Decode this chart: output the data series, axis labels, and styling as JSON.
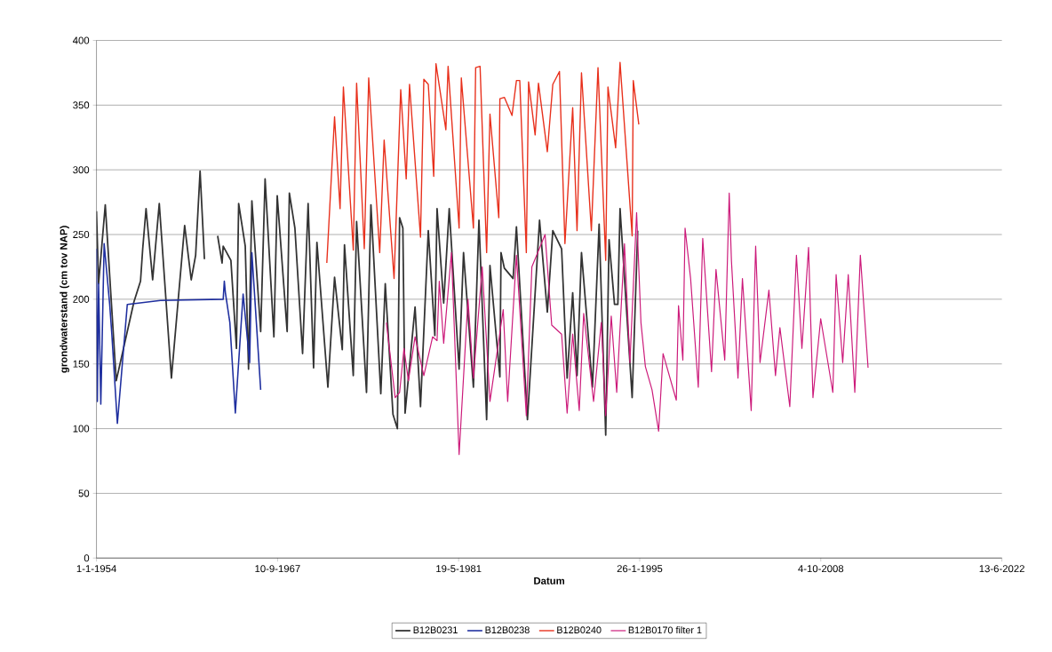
{
  "chart_data": {
    "type": "line",
    "xlabel": "Datum",
    "ylabel": "grondwaterstand (cm tov NAP)",
    "xlim": [
      "1954-01-01",
      "2022-06-13"
    ],
    "ylim": [
      0,
      400
    ],
    "xticks": [
      {
        "value": "1954-01-01",
        "label": "1-1-1954"
      },
      {
        "value": "1967-09-10",
        "label": "10-9-1967"
      },
      {
        "value": "1981-05-19",
        "label": "19-5-1981"
      },
      {
        "value": "1995-01-26",
        "label": "26-1-1995"
      },
      {
        "value": "2008-10-04",
        "label": "4-10-2008"
      },
      {
        "value": "2022-06-13",
        "label": "13-6-2022"
      }
    ],
    "yticks": [
      0,
      50,
      100,
      150,
      200,
      250,
      300,
      350,
      400
    ],
    "grid": "y",
    "legend": "bottom",
    "marker": "none",
    "line_style": "solid",
    "series": [
      {
        "name": "B12B0231",
        "color": "#333333",
        "x": [
          "1954-01-01",
          "1954-03",
          "1954-09",
          "1955-07",
          "1956-11",
          "1957-05",
          "1957-07",
          "1957-10",
          "1958-04",
          "1958-10",
          "1959-09",
          "1960-09",
          "1961-03",
          "1961-07",
          "1961-11",
          "1962-03",
          "1962-09",
          "1963-03",
          "1963-07",
          "1963-08",
          "1964-03",
          "1964-08",
          "1964-10",
          "1965-04",
          "1965-07",
          "1965-10",
          "1966-06",
          "1966-10",
          "1967-06",
          "1967-09",
          "1968-06",
          "1968-08",
          "1969-01",
          "1969-08",
          "1970-01",
          "1970-06",
          "1970-09",
          "1971-07",
          "1972-01",
          "1972-08",
          "1972-10",
          "1973-06",
          "1973-09",
          "1974-06",
          "1974-10",
          "1975-07",
          "1975-11",
          "1976-06",
          "1976-10",
          "1976-12",
          "1977-03",
          "1977-05",
          "1978-02",
          "1978-07",
          "1979-02",
          "1979-08",
          "1979-10",
          "1980-04",
          "1980-09",
          "1981-06",
          "1981-10",
          "1982-07",
          "1982-12",
          "1983-07",
          "1983-10",
          "1984-07",
          "1984-08",
          "1984-11",
          "1985-07",
          "1985-10",
          "1986-08",
          "1987-07",
          "1988-02",
          "1988-07",
          "1989-03",
          "1989-08",
          "1990-01",
          "1990-05",
          "1990-09",
          "1991-07",
          "1992-01",
          "1992-07",
          "1992-10",
          "1993-03",
          "1993-06",
          "1993-08",
          "1994-07",
          "1994-12"
        ],
        "values": [
          268,
          212,
          273,
          137,
          198,
          214,
          239,
          270,
          215,
          274,
          139,
          257,
          215,
          234,
          299,
          231,
          null,
          249,
          228,
          241,
          230,
          162,
          274,
          241,
          146,
          276,
          175,
          293,
          171,
          280,
          175,
          282,
          255,
          158,
          274,
          147,
          244,
          132,
          217,
          161,
          242,
          141,
          260,
          128,
          273,
          127,
          212,
          111,
          100,
          263,
          255,
          112,
          194,
          117,
          253,
          172,
          270,
          197,
          270,
          146,
          236,
          132,
          261,
          107,
          226,
          140,
          236,
          224,
          216,
          256,
          107,
          261,
          190,
          253,
          239,
          139,
          205,
          141,
          236,
          132,
          258,
          95,
          246,
          196,
          196,
          270,
          124,
          253
        ]
      },
      {
        "name": "B12B0238",
        "color": "#1f2f9f",
        "x": [
          "1954-01-01",
          "1954-01-25",
          "1954-03",
          "1954-05",
          "1954-08",
          "1955-01",
          "1955-03",
          "1955-08",
          "1956-05",
          "1958-11",
          "1963-08",
          "1963-09",
          "1963-10",
          "1964-02",
          "1964-07",
          "1965-02",
          "1965-08",
          "1965-10",
          "1966-06"
        ],
        "values": [
          239,
          121,
          212,
          119,
          243,
          196,
          173,
          104,
          196,
          199,
          200,
          214,
          205,
          182,
          112,
          204,
          151,
          236,
          130
        ]
      },
      {
        "name": "B12B0240",
        "color": "#e8301c",
        "x": [
          "1971-06",
          "1972-01",
          "1972-06",
          "1972-09",
          "1973-06",
          "1973-09",
          "1974-04",
          "1974-08",
          "1975-06",
          "1975-10",
          "1976-07",
          "1977-01",
          "1977-06",
          "1977-09",
          "1978-07",
          "1978-10",
          "1979-02",
          "1979-07",
          "1979-09",
          "1980-06",
          "1980-08",
          "1981-06",
          "1981-08",
          "1982-07",
          "1982-09",
          "1983-01",
          "1983-07",
          "1983-10",
          "1984-06",
          "1984-07",
          "1984-11",
          "1985-06",
          "1985-10",
          "1986-01",
          "1986-07",
          "1986-09",
          "1987-03",
          "1987-06",
          "1988-02",
          "1988-07",
          "1989-01",
          "1989-06",
          "1990-01",
          "1990-05",
          "1990-09",
          "1991-06",
          "1991-12",
          "1992-07",
          "1992-09",
          "1993-04",
          "1993-08",
          "1994-07",
          "1994-08",
          "1995-01"
        ],
        "values": [
          228,
          341,
          270,
          364,
          238,
          367,
          239,
          371,
          236,
          323,
          216,
          362,
          293,
          366,
          248,
          370,
          366,
          295,
          382,
          331,
          380,
          255,
          371,
          255,
          379,
          380,
          236,
          343,
          263,
          355,
          356,
          342,
          369,
          369,
          236,
          368,
          327,
          367,
          314,
          366,
          376,
          243,
          348,
          253,
          375,
          253,
          379,
          230,
          364,
          317,
          383,
          249,
          369,
          335
        ]
      },
      {
        "name": "B12B0170 filter 1",
        "color": "#cc1a7a",
        "x": [
          "1975-12",
          "1976-08",
          "1976-12",
          "1977-04",
          "1977-08",
          "1978-02",
          "1978-10",
          "1979-06",
          "1979-10",
          "1979-12",
          "1980-04",
          "1980-11",
          "1981-06",
          "1982-02",
          "1982-07",
          "1983-03",
          "1983-10",
          "1984-10",
          "1985-02",
          "1985-10",
          "1986-07",
          "1986-12",
          "1987-12",
          "1988-06",
          "1989-03",
          "1989-08",
          "1990-01",
          "1990-07",
          "1990-11",
          "1991-08",
          "1992-03",
          "1992-07",
          "1992-12",
          "1993-05",
          "1993-12",
          "1994-05",
          "1994-11",
          "1995-03",
          "1995-07",
          "1996-01",
          "1996-07",
          "1996-11",
          "1997-11",
          "1998-01",
          "1998-05",
          "1998-07",
          "1998-12",
          "1999-07",
          "1999-11",
          "2000-07",
          "2000-11",
          "2001-07",
          "2001-11",
          "2002-01",
          "2002-07",
          "2002-11",
          "2003-07",
          "2003-11",
          "2004-03",
          "2004-11",
          "2005-05",
          "2005-09",
          "2006-06",
          "2006-12",
          "2007-05",
          "2007-11",
          "2008-03",
          "2008-10",
          "2009-09",
          "2009-12",
          "2010-06",
          "2010-11",
          "2011-05",
          "2011-10",
          "2012-05"
        ],
        "values": [
          182,
          124,
          128,
          162,
          137,
          171,
          141,
          171,
          168,
          214,
          166,
          236,
          80,
          200,
          139,
          225,
          121,
          192,
          121,
          234,
          110,
          225,
          250,
          180,
          173,
          112,
          173,
          114,
          189,
          121,
          182,
          110,
          187,
          128,
          243,
          151,
          267,
          182,
          148,
          130,
          98,
          158,
          122,
          195,
          153,
          255,
          216,
          132,
          247,
          144,
          223,
          153,
          282,
          230,
          139,
          216,
          114,
          241,
          151,
          207,
          141,
          178,
          117,
          234,
          162,
          240,
          124,
          185,
          128,
          219,
          151,
          219,
          128,
          234,
          147
        ]
      }
    ]
  }
}
